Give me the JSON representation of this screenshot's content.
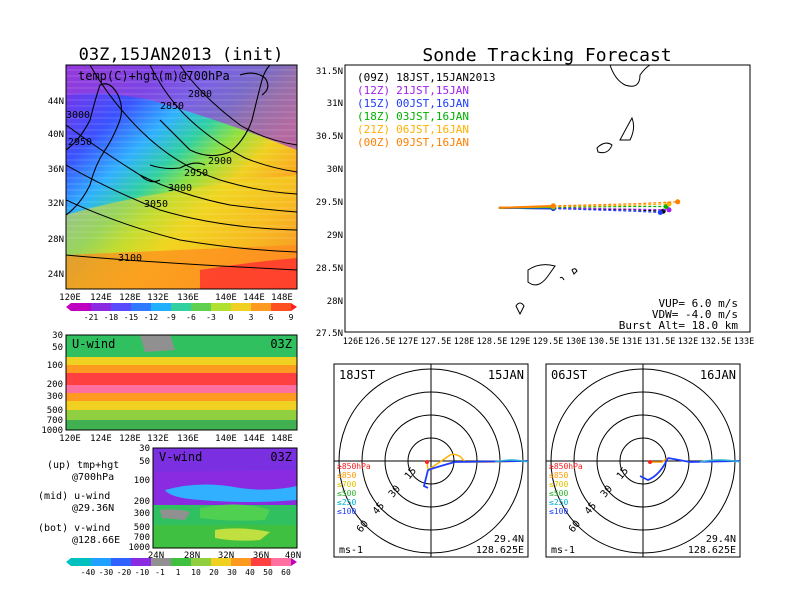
{
  "left": {
    "title": "03Z,15JAN2013 (init)",
    "map_label": "temp(C)+hgt(m)@700hPa",
    "lat_ticks": [
      "44N",
      "40N",
      "36N",
      "32N",
      "28N",
      "24N"
    ],
    "lon_ticks": [
      "120E",
      "124E",
      "128E",
      "132E",
      "136E",
      "140E",
      "144E",
      "148E"
    ],
    "contour_labels": [
      "2800",
      "2850",
      "2900",
      "2950",
      "3000",
      "3050",
      "3100",
      "2950",
      "3000"
    ],
    "temp_colorbar": [
      "-21",
      "-18",
      "-15",
      "-12",
      "-9",
      "-6",
      "-3",
      "0",
      "3",
      "6",
      "9"
    ],
    "uwind": {
      "label": "U-wind",
      "time": "03Z",
      "p_ticks": [
        "30",
        "50",
        "100",
        "200",
        "300",
        "500",
        "700",
        "1000"
      ]
    },
    "vwind": {
      "label": "V-wind",
      "time": "03Z",
      "p_ticks": [
        "30",
        "50",
        "100",
        "200",
        "300",
        "500",
        "700",
        "1000"
      ],
      "lat_ticks": [
        "24N",
        "28N",
        "32N",
        "36N",
        "40N"
      ]
    },
    "legend": {
      "up1": "(up) tmp+hgt",
      "up2": "@700hPa",
      "mid1": "(mid) u-wind",
      "mid2": "@29.36N",
      "bot1": "(bot) v-wind",
      "bot2": "@128.66E"
    },
    "wind_colorbar": [
      "-40",
      "-30",
      "-20",
      "-10",
      "-1",
      "1",
      "10",
      "20",
      "30",
      "40",
      "50",
      "60"
    ]
  },
  "right": {
    "title": "Sonde Tracking Forecast",
    "lat_ticks": [
      "31.5N",
      "31N",
      "30.5N",
      "30N",
      "29.5N",
      "29N",
      "28.5N",
      "28N",
      "27.5N"
    ],
    "lon_ticks": [
      "126E",
      "126.5E",
      "127E",
      "127.5E",
      "128E",
      "128.5E",
      "129E",
      "129.5E",
      "130E",
      "130.5E",
      "131E",
      "131.5E",
      "132E",
      "132.5E",
      "133E"
    ],
    "launches": [
      {
        "code": "(09Z)",
        "text": "18JST,15JAN2013",
        "color": "#000000"
      },
      {
        "code": "(12Z)",
        "text": "21JST,15JAN",
        "color": "#a020f0"
      },
      {
        "code": "(15Z)",
        "text": "00JST,16JAN",
        "color": "#1e3cff"
      },
      {
        "code": "(18Z)",
        "text": "03JST,16JAN",
        "color": "#00b000"
      },
      {
        "code": "(21Z)",
        "text": "06JST,16JAN",
        "color": "#ffb000"
      },
      {
        "code": "(00Z)",
        "text": "09JST,16JAN",
        "color": "#ff7f00"
      }
    ],
    "params": {
      "vup": "VUP= 6.0 m/s",
      "vdw": "VDW= -4.0 m/s",
      "burst": "Burst Alt= 18.0 km"
    }
  },
  "hodo": [
    {
      "time": "18JST",
      "date": "15JAN",
      "lat": "29.4N",
      "lon": "128.625E",
      "unit": "ms-1"
    },
    {
      "time": "06JST",
      "date": "16JAN",
      "lat": "29.4N",
      "lon": "128.625E",
      "unit": "ms-1"
    }
  ],
  "hodo_rings": [
    "15",
    "30",
    "45",
    "60"
  ],
  "hodo_levels": [
    {
      "label": "≥850hPa",
      "color": "#ff2020"
    },
    {
      "label": "≤850",
      "color": "#ff9900"
    },
    {
      "label": "≤700",
      "color": "#e0c000"
    },
    {
      "label": "≤500",
      "color": "#30b030"
    },
    {
      "label": "≤250",
      "color": "#00b0d0"
    },
    {
      "label": "≤100",
      "color": "#2040ff"
    }
  ],
  "chart_data": [
    {
      "type": "line",
      "title": "Sonde Tracking Forecast",
      "xlim": [
        126,
        133
      ],
      "ylim": [
        27.5,
        31.5
      ],
      "series": [
        {
          "name": "(09Z) 18JST,15JAN2013",
          "x": [
            128.66,
            129.6,
            131.0,
            131.5
          ],
          "y": [
            29.36,
            29.35,
            29.33,
            29.31
          ]
        },
        {
          "name": "(12Z) 21JST,15JAN",
          "x": [
            128.66,
            129.6,
            131.0,
            131.6
          ],
          "y": [
            29.36,
            29.36,
            29.34,
            29.33
          ]
        },
        {
          "name": "(15Z) 00JST,16JAN",
          "x": [
            128.66,
            129.6,
            131.0,
            131.45
          ],
          "y": [
            29.36,
            29.35,
            29.31,
            29.29
          ]
        },
        {
          "name": "(18Z) 03JST,16JAN",
          "x": [
            128.66,
            129.6,
            131.0,
            131.55
          ],
          "y": [
            29.36,
            29.37,
            29.38,
            29.38
          ]
        },
        {
          "name": "(21Z) 06JST,16JAN",
          "x": [
            128.66,
            129.6,
            131.0,
            131.6
          ],
          "y": [
            29.36,
            29.38,
            29.4,
            29.42
          ]
        },
        {
          "name": "(00Z) 09JST,16JAN",
          "x": [
            128.66,
            129.6,
            131.0,
            131.75
          ],
          "y": [
            29.36,
            29.39,
            29.42,
            29.45
          ]
        }
      ]
    }
  ]
}
